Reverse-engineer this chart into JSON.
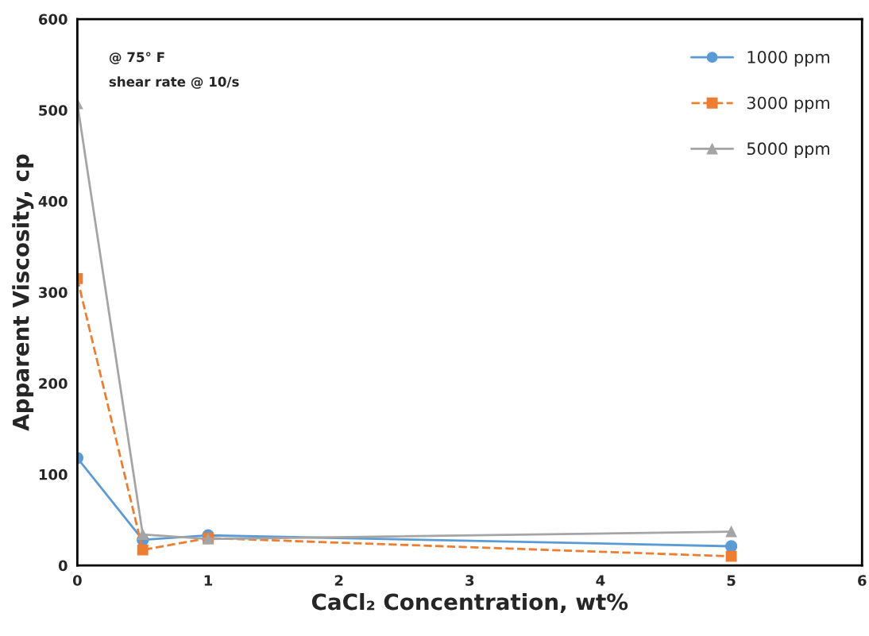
{
  "chart_data": {
    "type": "line",
    "xlabel": "CaCl₂ Concentration, wt%",
    "ylabel": "Apparent Viscosity, cp",
    "annotations": [
      "@ 75° F",
      "shear rate @ 10/s"
    ],
    "x": [
      0,
      0.5,
      1,
      5
    ],
    "series": [
      {
        "name": "1000 ppm",
        "color": "#5b9bd5",
        "marker": "circle",
        "line_style": "solid",
        "values": [
          118,
          28,
          33,
          21
        ]
      },
      {
        "name": "3000 ppm",
        "color": "#ed7d31",
        "marker": "square",
        "line_style": "dashed",
        "values": [
          315,
          17,
          30,
          10
        ]
      },
      {
        "name": "5000 ppm",
        "color": "#a5a5a5",
        "marker": "triangle",
        "line_style": "solid",
        "values": [
          507,
          34,
          29,
          37
        ]
      }
    ],
    "xlim": [
      0,
      6
    ],
    "xticks": [
      0,
      1,
      2,
      3,
      4,
      5,
      6
    ],
    "ylim": [
      0,
      600
    ],
    "yticks": [
      0,
      100,
      200,
      300,
      400,
      500,
      600
    ],
    "grid": false,
    "legend": "top right"
  }
}
